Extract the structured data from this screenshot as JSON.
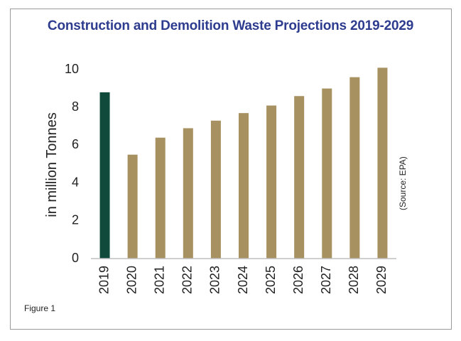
{
  "chart_data": {
    "type": "bar",
    "title": "Construction and Demolition Waste Projections 2019-2029",
    "xlabel": "",
    "ylabel": "in million Tonnes",
    "categories": [
      "2019",
      "2020",
      "2021",
      "2022",
      "2023",
      "2024",
      "2025",
      "2026",
      "2027",
      "2028",
      "2029"
    ],
    "values": [
      8.8,
      5.5,
      6.4,
      6.9,
      7.3,
      7.7,
      8.1,
      8.6,
      9.0,
      9.6,
      10.1
    ],
    "highlight_index": 0,
    "ylim": [
      0,
      10
    ],
    "yticks": [
      "0",
      "2",
      "4",
      "6",
      "8",
      "10"
    ],
    "grid": false,
    "colors": {
      "highlight": "#0f4a3a",
      "bar": "#a89160",
      "title": "#2e3c8f",
      "frame": "#9a9a9a"
    }
  },
  "source_note": "(Source: EPA)",
  "figure_caption": "Figure 1"
}
